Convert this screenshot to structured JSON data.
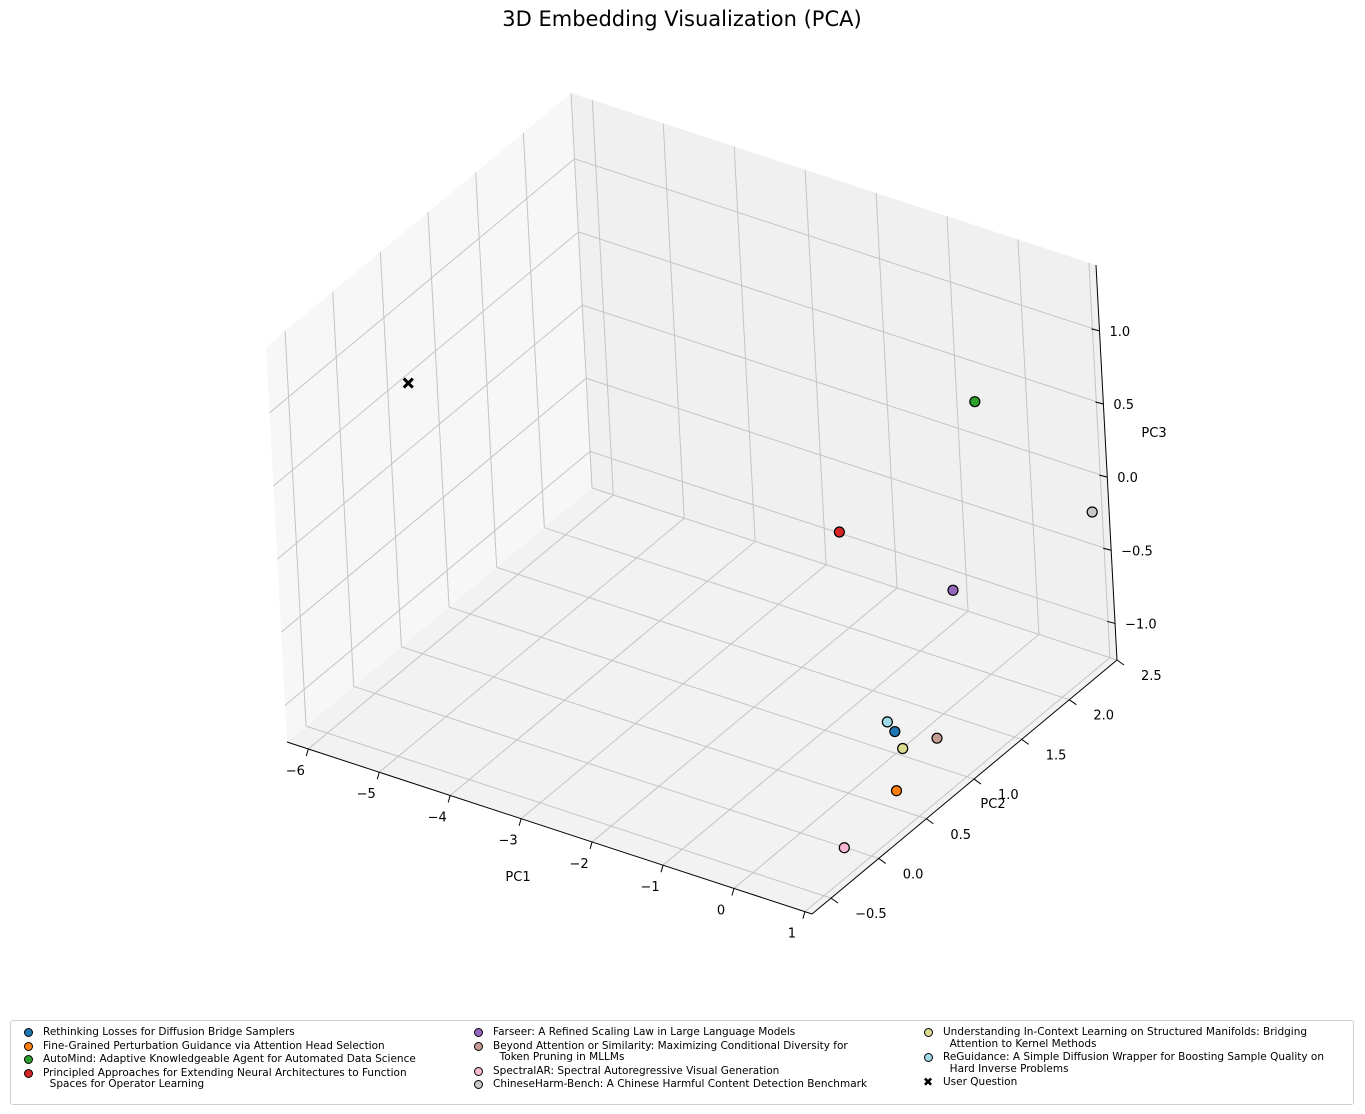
{
  "chart_data": {
    "type": "scatter",
    "title": "3D Embedding Visualization (PCA)",
    "xlabel": "PC1",
    "ylabel": "PC2",
    "zlabel": "PC3",
    "xlim": [
      -6.3,
      1.1
    ],
    "ylim": [
      -0.7,
      2.5
    ],
    "zlim": [
      -1.25,
      1.45
    ],
    "xticks": [
      "−6",
      "−5",
      "−4",
      "−3",
      "−2",
      "−1",
      "0",
      "1"
    ],
    "yticks": [
      "−0.5",
      "0.0",
      "0.5",
      "1.0",
      "1.5",
      "2.0",
      "2.5"
    ],
    "zticks": [
      "−1.0",
      "−0.5",
      "0.0",
      "0.5",
      "1.0"
    ],
    "grid": true,
    "legend_position": "bottom",
    "series": [
      {
        "name": "Rethinking Losses for Diffusion Bridge Samplers",
        "color": "#1f77b4",
        "marker": "circle",
        "x": 0.0,
        "y": 1.0,
        "z": -1.1
      },
      {
        "name": "Fine-Grained Perturbation Guidance via Attention Head Selection",
        "color": "#ff7f0e",
        "marker": "circle",
        "x": 0.55,
        "y": 0.6,
        "z": -1.2
      },
      {
        "name": "AutoMind: Adaptive Knowledgeable Agent for Automated Data Science",
        "color": "#2ca02c",
        "marker": "circle",
        "x": -0.6,
        "y": 2.4,
        "z": 0.3
      },
      {
        "name": "Principled Approaches for Extending Neural Architectures to Function\n  Spaces for Operator Learning",
        "color": "#d62728",
        "marker": "circle",
        "x": -1.5,
        "y": 1.6,
        "z": -0.3
      },
      {
        "name": "Farseer: A Refined Scaling Law in Large Language Models",
        "color": "#9467bd",
        "marker": "circle",
        "x": -0.2,
        "y": 1.8,
        "z": -0.6
      },
      {
        "name": "Beyond Attention or Similarity: Maximizing Conditional Diversity for\n  Token Pruning in MLLMs",
        "color": "#c49c94",
        "marker": "circle",
        "x": 0.6,
        "y": 1.0,
        "z": -1.05
      },
      {
        "name": "SpectralAR: Spectral Autoregressive Visual Generation",
        "color": "#f7b6d2",
        "marker": "circle",
        "x": 0.9,
        "y": -0.2,
        "z": -1.1
      },
      {
        "name": "ChineseHarm-Bench: A Chinese Harmful Content Detection Benchmark",
        "color": "#c7c7c7",
        "marker": "circle",
        "x": 1.0,
        "y": 2.4,
        "z": -0.2
      },
      {
        "name": "Understanding In-Context Learning on Structured Manifolds: Bridging\n  Attention to Kernel Methods",
        "color": "#dbdb8d",
        "marker": "circle",
        "x": 0.1,
        "y": 1.0,
        "z": -1.2
      },
      {
        "name": "ReGuidance: A Simple Diffusion Wrapper for Boosting Sample Quality on\n  Hard Inverse Problems",
        "color": "#9edae5",
        "marker": "circle",
        "x": -0.1,
        "y": 1.0,
        "z": -1.05
      },
      {
        "name": "User Question",
        "color": "#000000",
        "marker": "x",
        "x": -6.0,
        "y": 0.5,
        "z": 0.6
      }
    ]
  }
}
